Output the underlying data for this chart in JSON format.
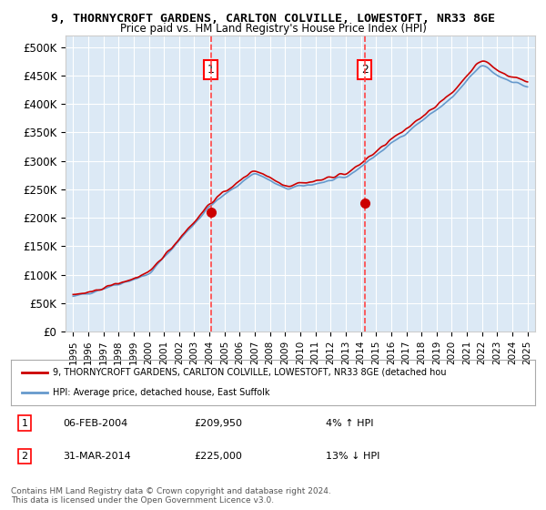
{
  "title1": "9, THORNYCROFT GARDENS, CARLTON COLVILLE, LOWESTOFT, NR33 8GE",
  "title2": "Price paid vs. HM Land Registry's House Price Index (HPI)",
  "background_color": "#dce9f5",
  "plot_bg": "#dce9f5",
  "ylim": [
    0,
    520000
  ],
  "yticks": [
    0,
    50000,
    100000,
    150000,
    200000,
    250000,
    300000,
    350000,
    400000,
    450000,
    500000
  ],
  "ytick_labels": [
    "£0",
    "£50K",
    "£100K",
    "£150K",
    "£200K",
    "£250K",
    "£300K",
    "£350K",
    "£400K",
    "£450K",
    "£500K"
  ],
  "sale1_date": 2004.09,
  "sale1_price": 209950,
  "sale1_label": "1",
  "sale2_date": 2014.25,
  "sale2_price": 225000,
  "sale2_label": "2",
  "legend_line1": "9, THORNYCROFT GARDENS, CARLTON COLVILLE, LOWESTOFT, NR33 8GE (detached hou",
  "legend_line2": "HPI: Average price, detached house, East Suffolk",
  "note1_label": "1",
  "note1_date": "06-FEB-2004",
  "note1_price": "£209,950",
  "note1_hpi": "4% ↑ HPI",
  "note2_label": "2",
  "note2_date": "31-MAR-2014",
  "note2_price": "£225,000",
  "note2_hpi": "13% ↓ HPI",
  "footer": "Contains HM Land Registry data © Crown copyright and database right 2024.\nThis data is licensed under the Open Government Licence v3.0.",
  "hpi_color": "#6699cc",
  "price_color": "#cc0000",
  "dashed_color": "#ff4444"
}
